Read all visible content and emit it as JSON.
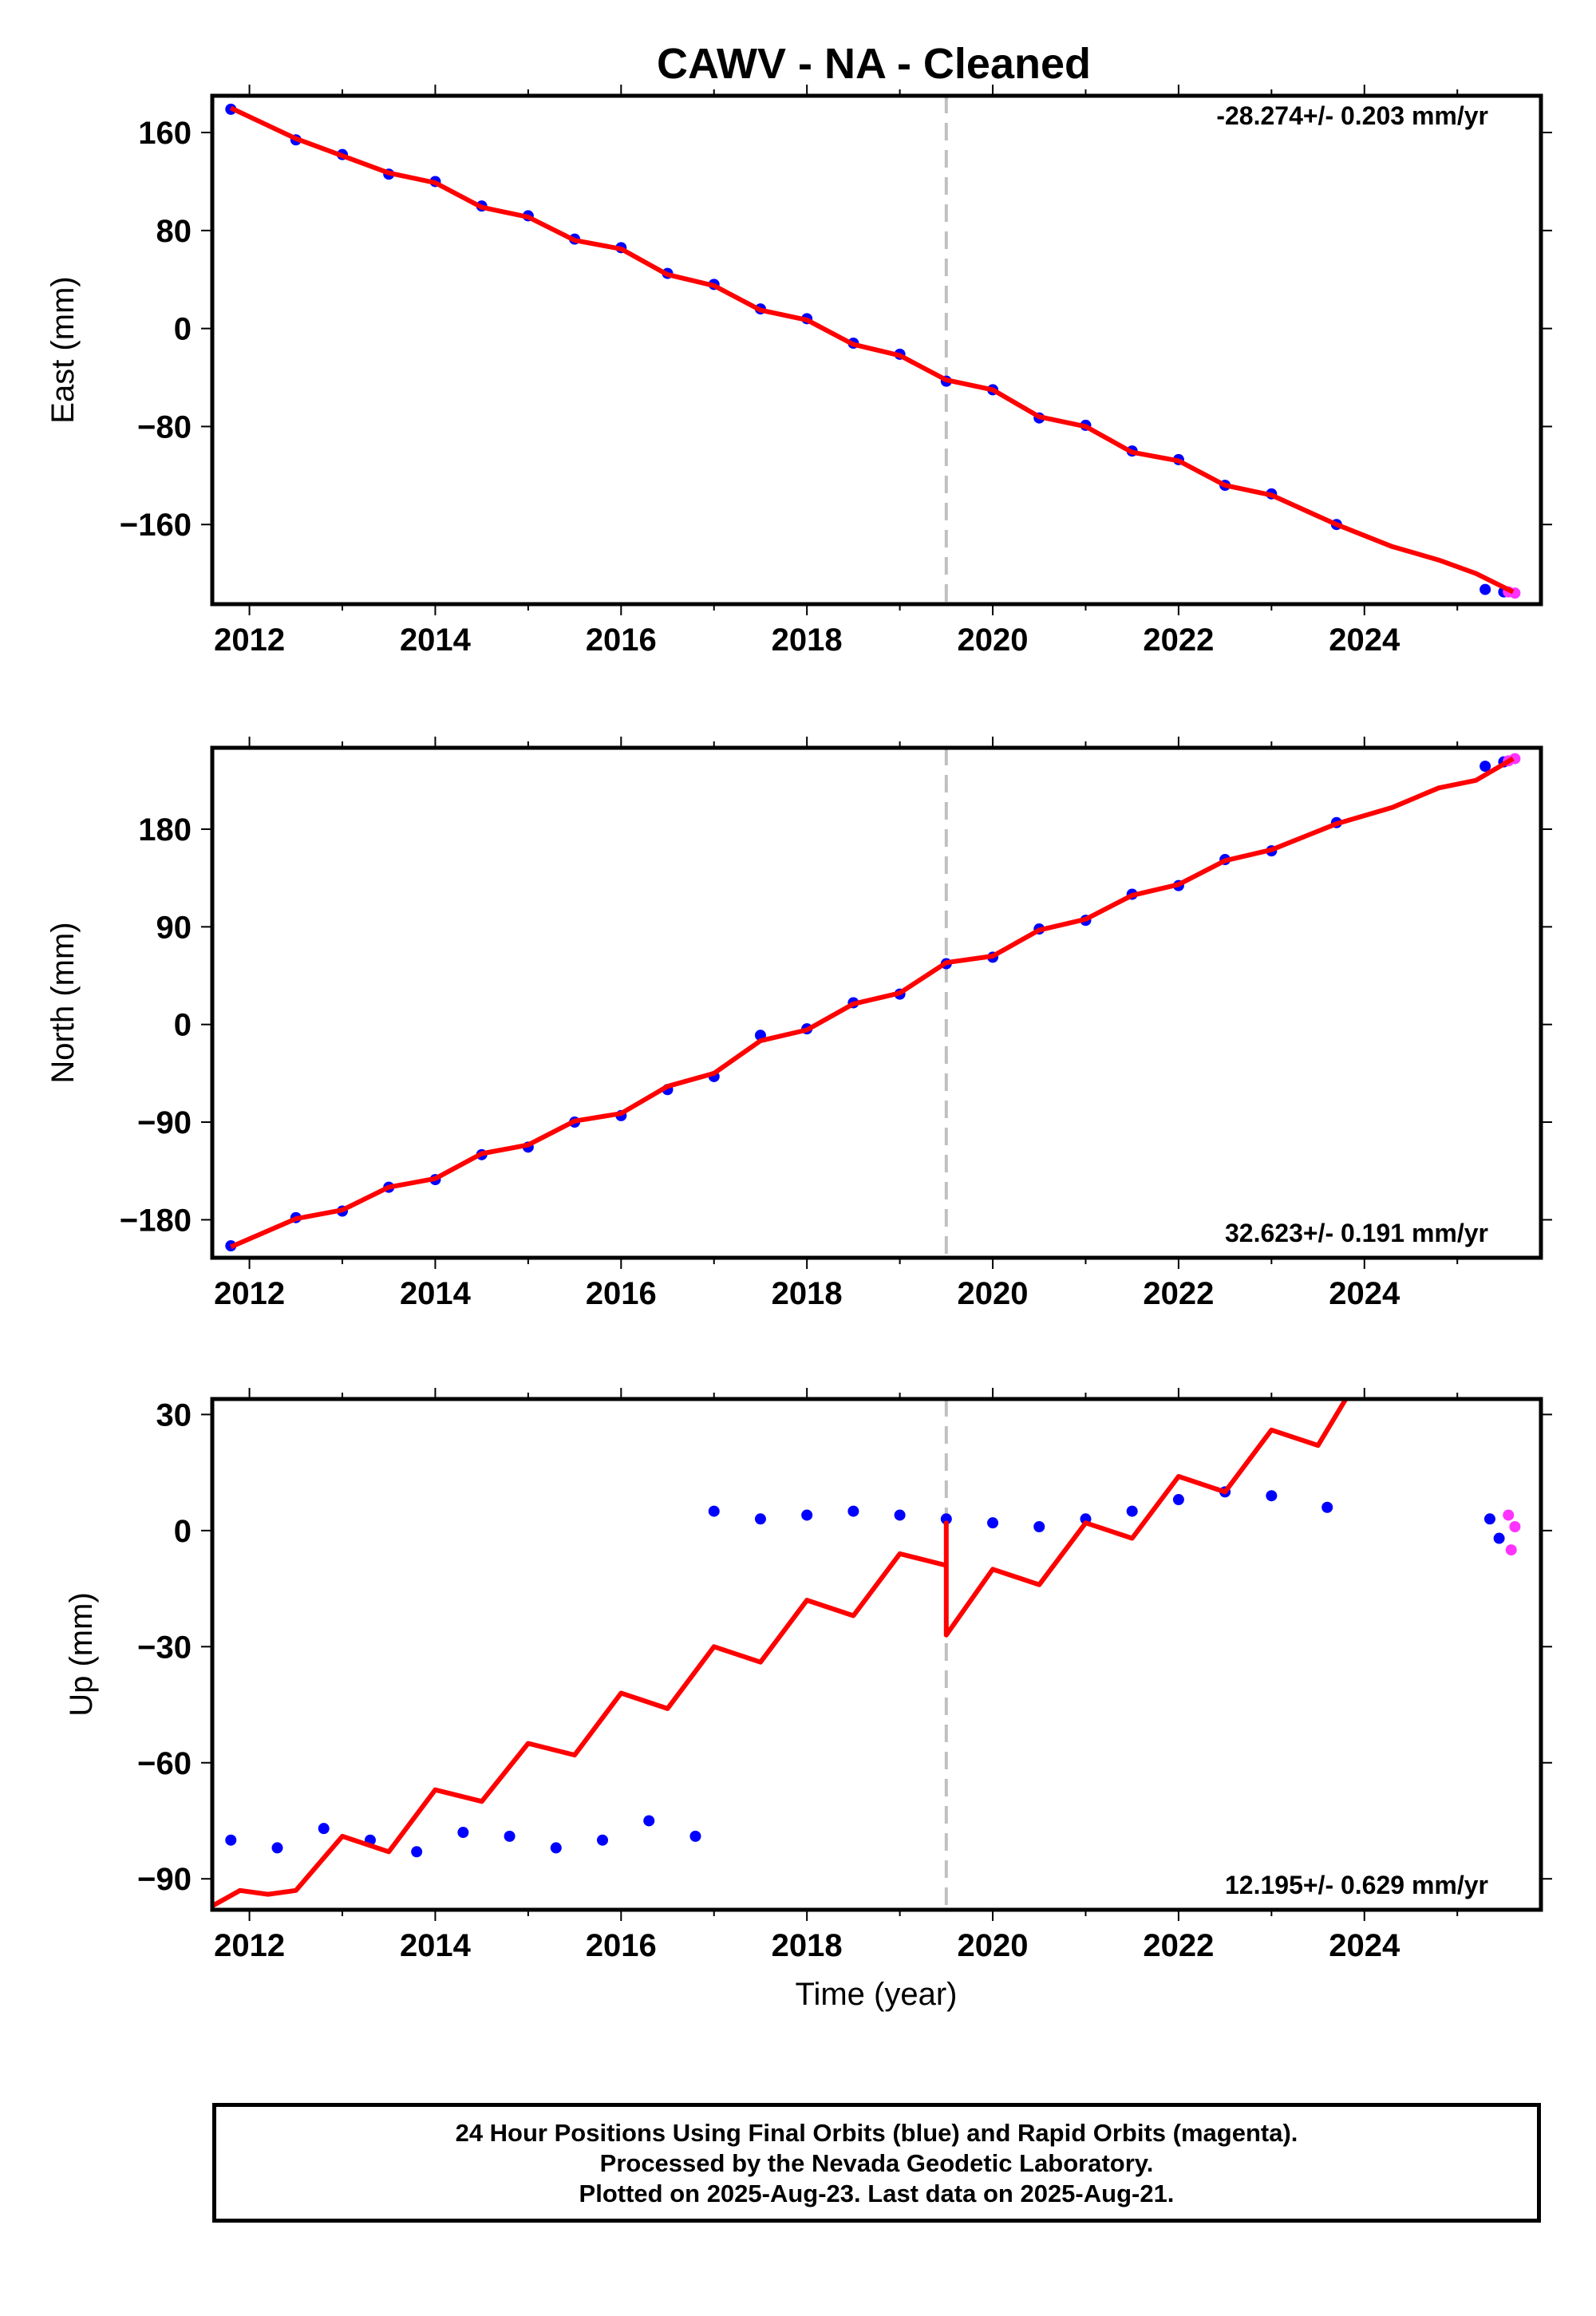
{
  "title": "CAWV  - NA - Cleaned",
  "xlabel": "Time (year)",
  "colors": {
    "final_points": "#0000ff",
    "rapid_points": "#ff33ff",
    "model_line": "#ff0000",
    "event_line": "#c0c0c0"
  },
  "caption": [
    "24 Hour Positions Using Final Orbits (blue) and Rapid Orbits (magenta).",
    "Processed by the Nevada Geodetic Laboratory.",
    "Plotted on 2025-Aug-23. Last data on 2025-Aug-21."
  ],
  "chart_data": [
    {
      "type": "scatter",
      "ylabel": "East (mm)",
      "rate_label": "-28.274+/- 0.203 mm/yr",
      "rate_position": "top-right",
      "xlim": [
        2011.6,
        2025.9
      ],
      "ylim": [
        -225,
        190
      ],
      "xticks": [
        "2012",
        "2014",
        "2016",
        "2018",
        "2020",
        "2022",
        "2024"
      ],
      "yticks": [
        "160",
        "80",
        "0",
        "−80",
        "−160"
      ],
      "ytick_values": [
        160,
        80,
        0,
        -80,
        -160
      ],
      "event_line_x": 2019.5,
      "final_orbits": [
        {
          "x": 2011.8,
          "y": 179
        },
        {
          "x": 2012.5,
          "y": 154
        },
        {
          "x": 2013.0,
          "y": 142
        },
        {
          "x": 2013.5,
          "y": 126
        },
        {
          "x": 2014.0,
          "y": 120
        },
        {
          "x": 2014.5,
          "y": 100
        },
        {
          "x": 2015.0,
          "y": 92
        },
        {
          "x": 2015.5,
          "y": 73
        },
        {
          "x": 2016.0,
          "y": 66
        },
        {
          "x": 2016.5,
          "y": 45
        },
        {
          "x": 2017.0,
          "y": 36
        },
        {
          "x": 2017.5,
          "y": 16
        },
        {
          "x": 2018.0,
          "y": 8
        },
        {
          "x": 2018.5,
          "y": -12
        },
        {
          "x": 2019.0,
          "y": -21
        },
        {
          "x": 2019.5,
          "y": -43
        },
        {
          "x": 2020.0,
          "y": -50
        },
        {
          "x": 2020.5,
          "y": -73
        },
        {
          "x": 2021.0,
          "y": -79
        },
        {
          "x": 2021.5,
          "y": -100
        },
        {
          "x": 2022.0,
          "y": -107
        },
        {
          "x": 2022.5,
          "y": -128
        },
        {
          "x": 2023.0,
          "y": -135
        },
        {
          "x": 2023.7,
          "y": -160
        },
        {
          "x": 2025.3,
          "y": -213
        },
        {
          "x": 2025.5,
          "y": -215
        }
      ],
      "rapid_orbits": [
        {
          "x": 2025.55,
          "y": -215
        },
        {
          "x": 2025.62,
          "y": -216
        }
      ],
      "model": [
        {
          "x": 2011.8,
          "y": 180
        },
        {
          "x": 2012.5,
          "y": 155
        },
        {
          "x": 2013.0,
          "y": 141
        },
        {
          "x": 2013.5,
          "y": 127
        },
        {
          "x": 2014.0,
          "y": 119
        },
        {
          "x": 2014.5,
          "y": 99
        },
        {
          "x": 2015.0,
          "y": 91
        },
        {
          "x": 2015.5,
          "y": 72
        },
        {
          "x": 2016.0,
          "y": 65
        },
        {
          "x": 2016.5,
          "y": 44
        },
        {
          "x": 2017.0,
          "y": 35
        },
        {
          "x": 2017.5,
          "y": 15
        },
        {
          "x": 2018.0,
          "y": 7
        },
        {
          "x": 2018.5,
          "y": -13
        },
        {
          "x": 2019.0,
          "y": -22
        },
        {
          "x": 2019.5,
          "y": -42
        },
        {
          "x": 2020.0,
          "y": -50
        },
        {
          "x": 2020.5,
          "y": -72
        },
        {
          "x": 2021.0,
          "y": -80
        },
        {
          "x": 2021.5,
          "y": -101
        },
        {
          "x": 2022.0,
          "y": -108
        },
        {
          "x": 2022.5,
          "y": -128
        },
        {
          "x": 2023.0,
          "y": -136
        },
        {
          "x": 2023.7,
          "y": -160
        },
        {
          "x": 2024.3,
          "y": -178
        },
        {
          "x": 2024.8,
          "y": -189
        },
        {
          "x": 2025.2,
          "y": -200
        },
        {
          "x": 2025.6,
          "y": -215
        }
      ]
    },
    {
      "type": "scatter",
      "ylabel": "North (mm)",
      "rate_label": "32.623+/- 0.191 mm/yr",
      "rate_position": "bottom-right",
      "xlim": [
        2011.6,
        2025.9
      ],
      "ylim": [
        -215,
        255
      ],
      "xticks": [
        "2012",
        "2014",
        "2016",
        "2018",
        "2020",
        "2022",
        "2024"
      ],
      "yticks": [
        "180",
        "90",
        "0",
        "−90",
        "−180"
      ],
      "ytick_values": [
        180,
        90,
        0,
        -90,
        -180
      ],
      "event_line_x": 2019.5,
      "final_orbits": [
        {
          "x": 2011.8,
          "y": -204
        },
        {
          "x": 2012.5,
          "y": -178
        },
        {
          "x": 2013.0,
          "y": -172
        },
        {
          "x": 2013.5,
          "y": -150
        },
        {
          "x": 2014.0,
          "y": -143
        },
        {
          "x": 2014.5,
          "y": -120
        },
        {
          "x": 2015.0,
          "y": -113
        },
        {
          "x": 2015.5,
          "y": -90
        },
        {
          "x": 2016.0,
          "y": -84
        },
        {
          "x": 2016.5,
          "y": -60
        },
        {
          "x": 2017.0,
          "y": -48
        },
        {
          "x": 2017.5,
          "y": -10
        },
        {
          "x": 2018.0,
          "y": -4
        },
        {
          "x": 2018.5,
          "y": 20
        },
        {
          "x": 2019.0,
          "y": 28
        },
        {
          "x": 2019.5,
          "y": 56
        },
        {
          "x": 2020.0,
          "y": 62
        },
        {
          "x": 2020.5,
          "y": 88
        },
        {
          "x": 2021.0,
          "y": 96
        },
        {
          "x": 2021.5,
          "y": 120
        },
        {
          "x": 2022.0,
          "y": 128
        },
        {
          "x": 2022.5,
          "y": 152
        },
        {
          "x": 2023.0,
          "y": 160
        },
        {
          "x": 2023.7,
          "y": 186
        },
        {
          "x": 2025.3,
          "y": 238
        },
        {
          "x": 2025.5,
          "y": 242
        }
      ],
      "rapid_orbits": [
        {
          "x": 2025.55,
          "y": 243
        },
        {
          "x": 2025.62,
          "y": 245
        }
      ],
      "model": [
        {
          "x": 2011.8,
          "y": -205
        },
        {
          "x": 2012.5,
          "y": -179
        },
        {
          "x": 2013.0,
          "y": -171
        },
        {
          "x": 2013.5,
          "y": -150
        },
        {
          "x": 2014.0,
          "y": -142
        },
        {
          "x": 2014.5,
          "y": -119
        },
        {
          "x": 2015.0,
          "y": -111
        },
        {
          "x": 2015.5,
          "y": -89
        },
        {
          "x": 2016.0,
          "y": -82
        },
        {
          "x": 2016.5,
          "y": -57
        },
        {
          "x": 2017.0,
          "y": -45
        },
        {
          "x": 2017.5,
          "y": -15
        },
        {
          "x": 2018.0,
          "y": -5
        },
        {
          "x": 2018.5,
          "y": 19
        },
        {
          "x": 2019.0,
          "y": 29
        },
        {
          "x": 2019.5,
          "y": 57
        },
        {
          "x": 2020.0,
          "y": 63
        },
        {
          "x": 2020.5,
          "y": 87
        },
        {
          "x": 2021.0,
          "y": 97
        },
        {
          "x": 2021.5,
          "y": 119
        },
        {
          "x": 2022.0,
          "y": 129
        },
        {
          "x": 2022.5,
          "y": 151
        },
        {
          "x": 2023.0,
          "y": 161
        },
        {
          "x": 2023.7,
          "y": 185
        },
        {
          "x": 2024.3,
          "y": 200
        },
        {
          "x": 2024.8,
          "y": 218
        },
        {
          "x": 2025.2,
          "y": 225
        },
        {
          "x": 2025.6,
          "y": 245
        }
      ]
    },
    {
      "type": "scatter",
      "ylabel": "Up (mm)",
      "rate_label": "12.195+/- 0.629 mm/yr",
      "rate_position": "bottom-right",
      "xlim": [
        2011.6,
        2025.9
      ],
      "ylim": [
        -98,
        34
      ],
      "xticks": [
        "2012",
        "2014",
        "2016",
        "2018",
        "2020",
        "2022",
        "2024"
      ],
      "yticks": [
        "30",
        "0",
        "−30",
        "−60",
        "−90"
      ],
      "ytick_values": [
        30,
        0,
        -30,
        -60,
        -90
      ],
      "event_line_x": 2019.5,
      "final_orbits": [
        {
          "x": 2011.8,
          "y": -80
        },
        {
          "x": 2012.3,
          "y": -82
        },
        {
          "x": 2012.8,
          "y": -77
        },
        {
          "x": 2013.3,
          "y": -80
        },
        {
          "x": 2013.8,
          "y": -83
        },
        {
          "x": 2014.3,
          "y": -78
        },
        {
          "x": 2014.8,
          "y": -79
        },
        {
          "x": 2015.3,
          "y": -82
        },
        {
          "x": 2015.8,
          "y": -80
        },
        {
          "x": 2016.3,
          "y": -75
        },
        {
          "x": 2016.8,
          "y": -79
        },
        {
          "x": 2017.0,
          "y": 5
        },
        {
          "x": 2017.5,
          "y": 3
        },
        {
          "x": 2018.0,
          "y": 4
        },
        {
          "x": 2018.5,
          "y": 5
        },
        {
          "x": 2019.0,
          "y": 4
        },
        {
          "x": 2019.5,
          "y": 3
        },
        {
          "x": 2020.0,
          "y": 2
        },
        {
          "x": 2020.5,
          "y": 1
        },
        {
          "x": 2021.0,
          "y": 3
        },
        {
          "x": 2021.5,
          "y": 5
        },
        {
          "x": 2022.0,
          "y": 8
        },
        {
          "x": 2022.5,
          "y": 10
        },
        {
          "x": 2023.0,
          "y": 9
        },
        {
          "x": 2023.6,
          "y": 6
        },
        {
          "x": 2025.35,
          "y": 3
        },
        {
          "x": 2025.45,
          "y": -2
        }
      ],
      "rapid_orbits": [
        {
          "x": 2025.55,
          "y": 4
        },
        {
          "x": 2025.58,
          "y": -5
        },
        {
          "x": 2025.62,
          "y": 1
        }
      ],
      "model": [
        {
          "x": 2011.6,
          "y": -97
        },
        {
          "x": 2011.9,
          "y": -93
        },
        {
          "x": 2012.2,
          "y": -94
        },
        {
          "x": 2012.5,
          "y": -93
        },
        {
          "x": 2013.0,
          "y": -79
        },
        {
          "x": 2013.5,
          "y": -83
        },
        {
          "x": 2014.0,
          "y": -67
        },
        {
          "x": 2014.5,
          "y": -70
        },
        {
          "x": 2015.0,
          "y": -55
        },
        {
          "x": 2015.5,
          "y": -58
        },
        {
          "x": 2016.0,
          "y": -42
        },
        {
          "x": 2016.5,
          "y": -46
        },
        {
          "x": 2017.0,
          "y": -30
        },
        {
          "x": 2017.5,
          "y": -34
        },
        {
          "x": 2018.0,
          "y": -18
        },
        {
          "x": 2018.5,
          "y": -22
        },
        {
          "x": 2019.0,
          "y": -6
        },
        {
          "x": 2019.5,
          "y": -9
        },
        {
          "x": 2019.5,
          "y": 2
        },
        {
          "x": 2019.5,
          "y": -27
        },
        {
          "x": 2020.0,
          "y": -10
        },
        {
          "x": 2020.5,
          "y": -14
        },
        {
          "x": 2021.0,
          "y": 2
        },
        {
          "x": 2021.5,
          "y": -2
        },
        {
          "x": 2022.0,
          "y": 14
        },
        {
          "x": 2022.5,
          "y": 10
        },
        {
          "x": 2023.0,
          "y": 26
        },
        {
          "x": 2023.5,
          "y": 22
        },
        {
          "x": 2023.8,
          "y": 34
        }
      ]
    }
  ]
}
